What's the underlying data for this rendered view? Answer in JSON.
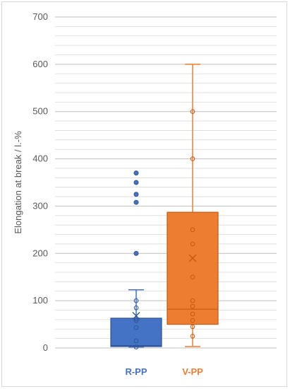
{
  "chart_data": {
    "type": "box",
    "ylabel": "Elongation at break / l.-%",
    "ylim": [
      0,
      700
    ],
    "yticks": [
      0,
      100,
      200,
      300,
      400,
      500,
      600,
      700
    ],
    "minor_grid_step": 20,
    "grid": true,
    "series": [
      {
        "name": "R-PP",
        "color": "#4472c4",
        "min": 2,
        "q1": 3,
        "median": 5,
        "q3": 63,
        "whisker_high": 123,
        "mean": 68,
        "inner_points": [
          2,
          15,
          43,
          58,
          62,
          85,
          100
        ],
        "outliers": [
          200,
          308,
          325,
          350,
          370
        ]
      },
      {
        "name": "V-PP",
        "color": "#ed7d31",
        "min": 3,
        "q1": 50,
        "median": 82,
        "q3": 287,
        "whisker_high": 600,
        "mean": 190,
        "inner_points": [
          25,
          45,
          58,
          72,
          88,
          100,
          150,
          220,
          250,
          400,
          500
        ],
        "outliers": []
      }
    ]
  }
}
